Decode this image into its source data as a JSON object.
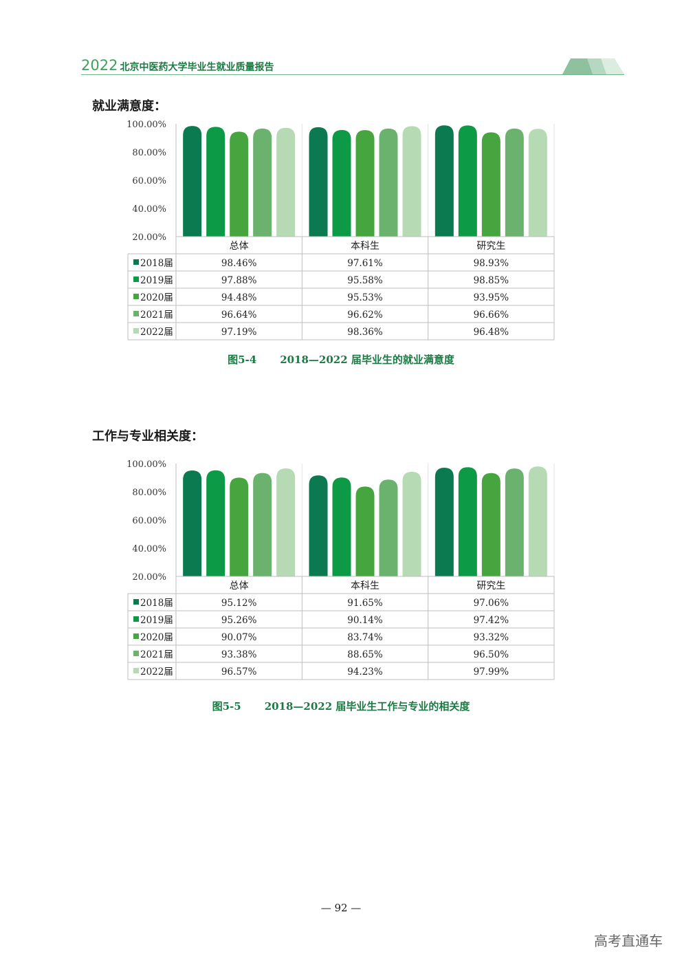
{
  "header": {
    "year": "2022",
    "title": "北京中医药大学毕业生就业质量报告"
  },
  "colors": {
    "series": [
      "#0b7a50",
      "#0d9a47",
      "#47a53f",
      "#6bb26f",
      "#b5dab4"
    ],
    "accent": "#1a7a43",
    "grid": "#bdbdbd"
  },
  "sections": [
    {
      "title": "就业满意度："
    },
    {
      "title": "工作与专业相关度："
    }
  ],
  "chart_data": [
    {
      "type": "bar",
      "categories": [
        "总体",
        "本科生",
        "研究生"
      ],
      "ylim": [
        20,
        100
      ],
      "yticks": [
        "100.00%",
        "80.00%",
        "60.00%",
        "40.00%",
        "20.00%"
      ],
      "series": [
        {
          "name": "2018届",
          "values": [
            98.46,
            97.61,
            98.93
          ],
          "labels": [
            "98.46%",
            "97.61%",
            "98.93%"
          ]
        },
        {
          "name": "2019届",
          "values": [
            97.88,
            95.58,
            98.85
          ],
          "labels": [
            "97.88%",
            "95.58%",
            "98.85%"
          ]
        },
        {
          "name": "2020届",
          "values": [
            94.48,
            95.53,
            93.95
          ],
          "labels": [
            "94.48%",
            "95.53%",
            "93.95%"
          ]
        },
        {
          "name": "2021届",
          "values": [
            96.64,
            96.62,
            96.66
          ],
          "labels": [
            "96.64%",
            "96.62%",
            "96.66%"
          ]
        },
        {
          "name": "2022届",
          "values": [
            97.19,
            98.36,
            96.48
          ],
          "labels": [
            "97.19%",
            "98.36%",
            "96.48%"
          ]
        }
      ],
      "caption": {
        "number": "图5-4",
        "text": "2018—2022 届毕业生的就业满意度"
      }
    },
    {
      "type": "bar",
      "categories": [
        "总体",
        "本科生",
        "研究生"
      ],
      "ylim": [
        20,
        100
      ],
      "yticks": [
        "100.00%",
        "80.00%",
        "60.00%",
        "40.00%",
        "20.00%"
      ],
      "series": [
        {
          "name": "2018届",
          "values": [
            95.12,
            91.65,
            97.06
          ],
          "labels": [
            "95.12%",
            "91.65%",
            "97.06%"
          ]
        },
        {
          "name": "2019届",
          "values": [
            95.26,
            90.14,
            97.42
          ],
          "labels": [
            "95.26%",
            "90.14%",
            "97.42%"
          ]
        },
        {
          "name": "2020届",
          "values": [
            90.07,
            83.74,
            93.32
          ],
          "labels": [
            "90.07%",
            "83.74%",
            "93.32%"
          ]
        },
        {
          "name": "2021届",
          "values": [
            93.38,
            88.65,
            96.5
          ],
          "labels": [
            "93.38%",
            "88.65%",
            "96.50%"
          ]
        },
        {
          "name": "2022届",
          "values": [
            96.57,
            94.23,
            97.99
          ],
          "labels": [
            "96.57%",
            "94.23%",
            "97.99%"
          ]
        }
      ],
      "caption": {
        "number": "图5-5",
        "text": "2018—2022 届毕业生工作与专业的相关度"
      }
    }
  ],
  "footer": {
    "page_number": "— 92 —",
    "watermark": "高考直通车"
  }
}
